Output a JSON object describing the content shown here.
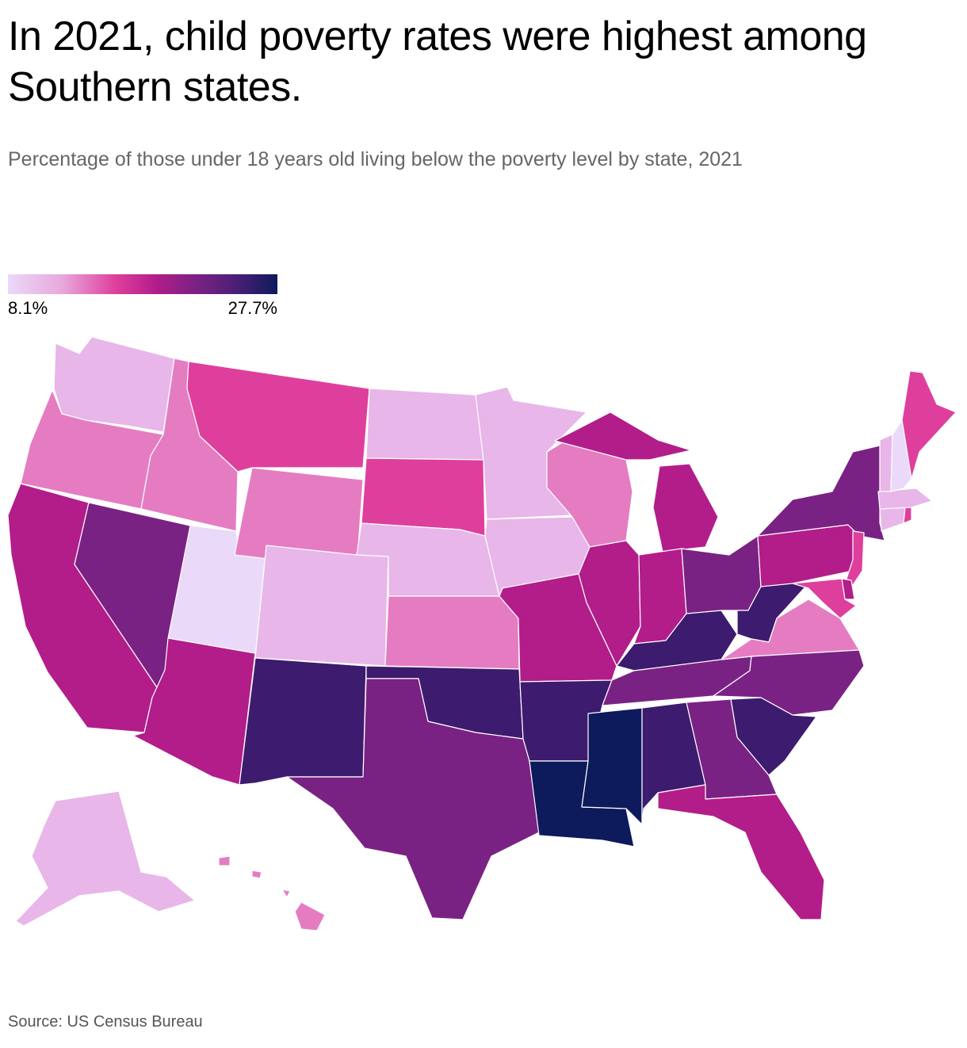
{
  "title": "In 2021, child poverty rates were highest among Southern states.",
  "subtitle": "Percentage of those under 18 years old living below the poverty level by state, 2021",
  "legend": {
    "min_label": "8.1%",
    "max_label": "27.7%",
    "min": 8.1,
    "max": 27.7
  },
  "source": "Source: US Census Bureau",
  "colors": {
    "lowest": "#ead9f8",
    "low": "#e8b6e8",
    "mid_low": "#e57cc2",
    "mid": "#df3f9c",
    "mid_high": "#b21d8a",
    "high": "#7a2284",
    "very_high": "#3d1b6e",
    "highest": "#0d1a5c"
  },
  "states": [
    {
      "id": "WA",
      "tier": "low"
    },
    {
      "id": "OR",
      "tier": "mid_low"
    },
    {
      "id": "CA",
      "tier": "mid_high"
    },
    {
      "id": "ID",
      "tier": "mid_low"
    },
    {
      "id": "NV",
      "tier": "high"
    },
    {
      "id": "UT",
      "tier": "lowest"
    },
    {
      "id": "AZ",
      "tier": "mid_high"
    },
    {
      "id": "MT",
      "tier": "mid"
    },
    {
      "id": "WY",
      "tier": "mid_low"
    },
    {
      "id": "CO",
      "tier": "low"
    },
    {
      "id": "NM",
      "tier": "very_high"
    },
    {
      "id": "ND",
      "tier": "low"
    },
    {
      "id": "SD",
      "tier": "mid"
    },
    {
      "id": "NE",
      "tier": "low"
    },
    {
      "id": "KS",
      "tier": "mid_low"
    },
    {
      "id": "OK",
      "tier": "very_high"
    },
    {
      "id": "TX",
      "tier": "high"
    },
    {
      "id": "MN",
      "tier": "low"
    },
    {
      "id": "IA",
      "tier": "low"
    },
    {
      "id": "MO",
      "tier": "mid_high"
    },
    {
      "id": "AR",
      "tier": "very_high"
    },
    {
      "id": "LA",
      "tier": "highest"
    },
    {
      "id": "WI",
      "tier": "mid_low"
    },
    {
      "id": "IL",
      "tier": "mid_high"
    },
    {
      "id": "MS",
      "tier": "highest"
    },
    {
      "id": "MI",
      "tier": "mid_high"
    },
    {
      "id": "IN",
      "tier": "mid_high"
    },
    {
      "id": "KY",
      "tier": "very_high"
    },
    {
      "id": "TN",
      "tier": "high"
    },
    {
      "id": "AL",
      "tier": "very_high"
    },
    {
      "id": "OH",
      "tier": "high"
    },
    {
      "id": "WV",
      "tier": "very_high"
    },
    {
      "id": "VA",
      "tier": "mid_low"
    },
    {
      "id": "NC",
      "tier": "high"
    },
    {
      "id": "SC",
      "tier": "very_high"
    },
    {
      "id": "GA",
      "tier": "high"
    },
    {
      "id": "FL",
      "tier": "mid_high"
    },
    {
      "id": "PA",
      "tier": "mid_high"
    },
    {
      "id": "NY",
      "tier": "high"
    },
    {
      "id": "NJ",
      "tier": "mid"
    },
    {
      "id": "DE",
      "tier": "mid_high"
    },
    {
      "id": "MD",
      "tier": "mid"
    },
    {
      "id": "CT",
      "tier": "low"
    },
    {
      "id": "RI",
      "tier": "mid"
    },
    {
      "id": "MA",
      "tier": "low"
    },
    {
      "id": "VT",
      "tier": "low"
    },
    {
      "id": "NH",
      "tier": "lowest"
    },
    {
      "id": "ME",
      "tier": "mid"
    },
    {
      "id": "AK",
      "tier": "low"
    },
    {
      "id": "HI",
      "tier": "mid_low"
    }
  ]
}
